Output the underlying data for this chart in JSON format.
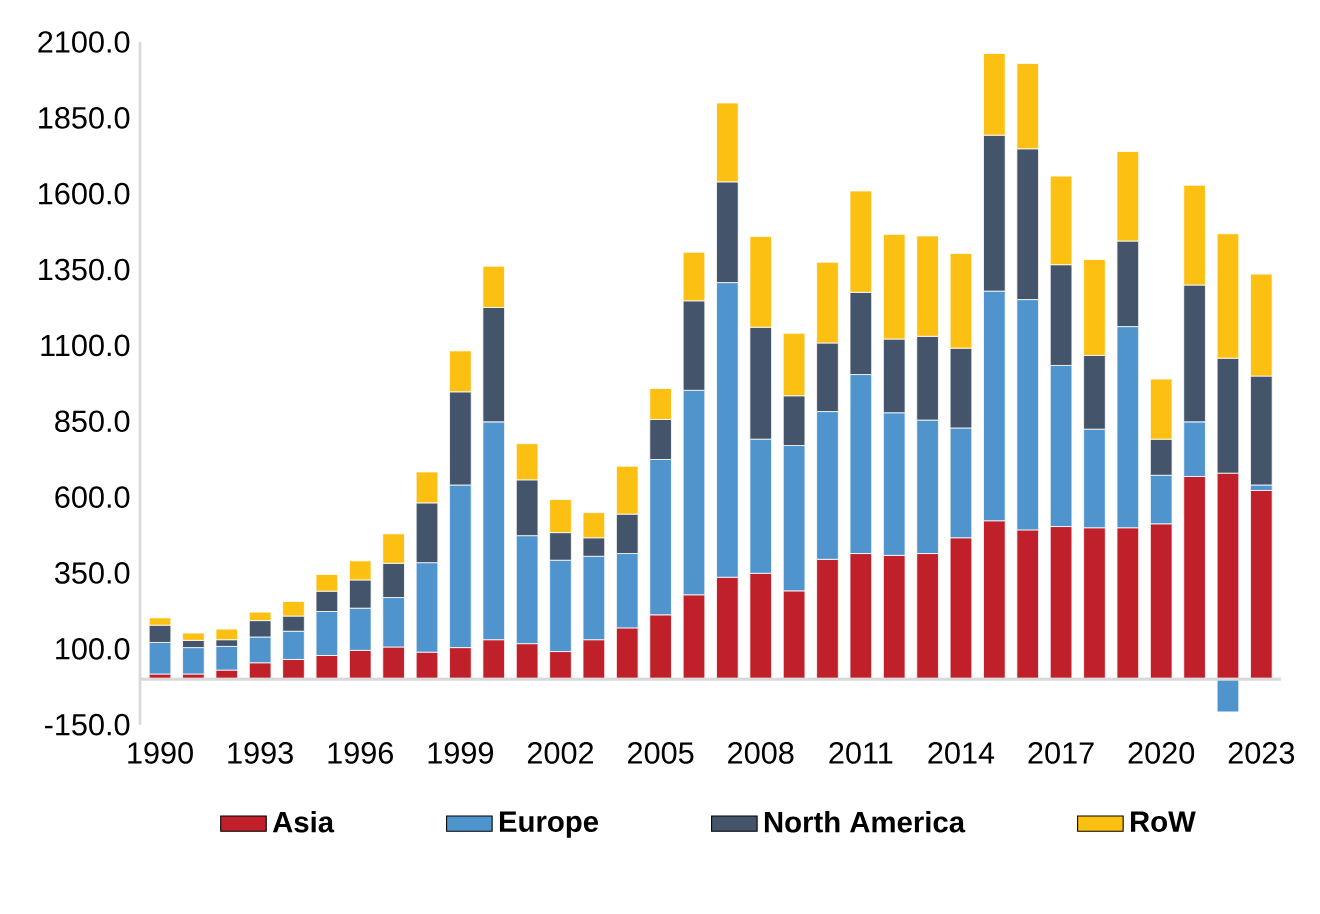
{
  "chart_data": {
    "type": "bar",
    "stacked": true,
    "legend": "bottom",
    "x": [
      1990,
      1991,
      1992,
      1993,
      1994,
      1995,
      1996,
      1997,
      1998,
      1999,
      2000,
      2001,
      2002,
      2003,
      2004,
      2005,
      2006,
      2007,
      2008,
      2009,
      2010,
      2011,
      2012,
      2013,
      2014,
      2015,
      2016,
      2017,
      2018,
      2019,
      2020,
      2021,
      2022,
      2023
    ],
    "xlim": [
      1989.4,
      2023.6
    ],
    "xticks": [
      1990,
      1993,
      1996,
      1999,
      2002,
      2005,
      2008,
      2011,
      2014,
      2017,
      2020,
      2023
    ],
    "ylim": [
      -150,
      2100
    ],
    "yticks": [
      {
        "value": -150,
        "label": "-150.0"
      },
      {
        "value": 100,
        "label": "100.0"
      },
      {
        "value": 350,
        "label": "350.0"
      },
      {
        "value": 600,
        "label": "600.0"
      },
      {
        "value": 850,
        "label": "850.0"
      },
      {
        "value": 1100,
        "label": "1100.0"
      },
      {
        "value": 1350,
        "label": "1350.0"
      },
      {
        "value": 1600,
        "label": "1600.0"
      },
      {
        "value": 1850,
        "label": "1850.0"
      },
      {
        "value": 2100,
        "label": "2100.0"
      }
    ],
    "series": [
      {
        "name": "Asia",
        "color": "#c0202a",
        "values": [
          17,
          17,
          30,
          54,
          65,
          78,
          95,
          106,
          89,
          104,
          130,
          117,
          91,
          130,
          169,
          212,
          278,
          336,
          349,
          291,
          395,
          414,
          408,
          414,
          466,
          522,
          492,
          503,
          499,
          499,
          512,
          668,
          679,
          622
        ]
      },
      {
        "name": "Europe",
        "color": "#5094ce",
        "values": [
          104,
          87,
          78,
          85,
          93,
          145,
          139,
          163,
          295,
          536,
          718,
          356,
          301,
          275,
          245,
          512,
          674,
          971,
          442,
          479,
          487,
          590,
          470,
          440,
          362,
          757,
          759,
          531,
          325,
          663,
          160,
          180,
          -108,
          18
        ]
      },
      {
        "name": "North America",
        "color": "#44546a",
        "values": [
          57,
          24,
          22,
          54,
          50,
          67,
          93,
          113,
          197,
          307,
          377,
          184,
          91,
          61,
          130,
          132,
          295,
          332,
          369,
          164,
          226,
          271,
          243,
          276,
          263,
          514,
          497,
          332,
          243,
          282,
          119,
          451,
          379,
          359
        ]
      },
      {
        "name": "RoW",
        "color": "#fcc012",
        "values": [
          24,
          24,
          35,
          28,
          48,
          55,
          63,
          97,
          102,
          135,
          136,
          119,
          109,
          83,
          158,
          102,
          160,
          260,
          299,
          206,
          266,
          334,
          345,
          331,
          312,
          269,
          281,
          292,
          316,
          295,
          198,
          329,
          410,
          336
        ]
      }
    ]
  }
}
